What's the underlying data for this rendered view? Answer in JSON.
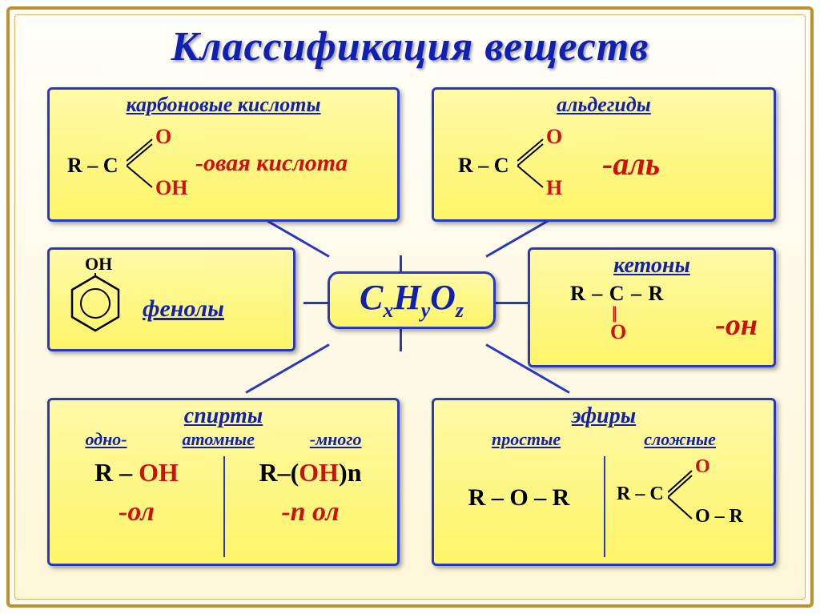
{
  "title": "Классификация веществ",
  "center_formula_html": "C<sub>x</sub>H<sub>y</sub>O<sub>z</sub>",
  "colors": {
    "frame_border": "#c09030",
    "card_border": "#2838c0",
    "card_bg_top": "#fff9a8",
    "card_bg_bottom": "#fef568",
    "title_color": "#1020b0",
    "accent_red": "#d01010",
    "text_black": "#000000"
  },
  "cards": {
    "carboxylic": {
      "title": "карбоновые кислоты",
      "r_label": "R – C",
      "top_branch": "O",
      "bottom_branch": "OH",
      "suffix": "-овая кислота"
    },
    "aldehydes": {
      "title": "альдегиды",
      "r_label": "R – C",
      "top_branch": "O",
      "bottom_branch": "H",
      "suffix": "-аль"
    },
    "phenols": {
      "title": "фенолы",
      "oh_label": "OH"
    },
    "ketones": {
      "title": "кетоны",
      "line1": "R – C – R",
      "dbl": "||",
      "oatom": "O",
      "suffix": "-он"
    },
    "spirits": {
      "title": "спирты",
      "sub_left": "одно-",
      "sub_mid": "атомные",
      "sub_right": "-много",
      "formula_left_r": "R – ",
      "formula_left_oh": "OH",
      "formula_right_r": "R–(",
      "formula_right_oh": "OH",
      "formula_right_end": ")n",
      "suffix_left": "-ол",
      "suffix_right": "-n ол"
    },
    "ethers": {
      "title": "эфиры",
      "sub_left": "простые",
      "sub_right": "сложные",
      "simple_formula": "R – O – R",
      "complex_r": "R – C",
      "complex_top": "O",
      "complex_bottom": "O – R"
    }
  }
}
